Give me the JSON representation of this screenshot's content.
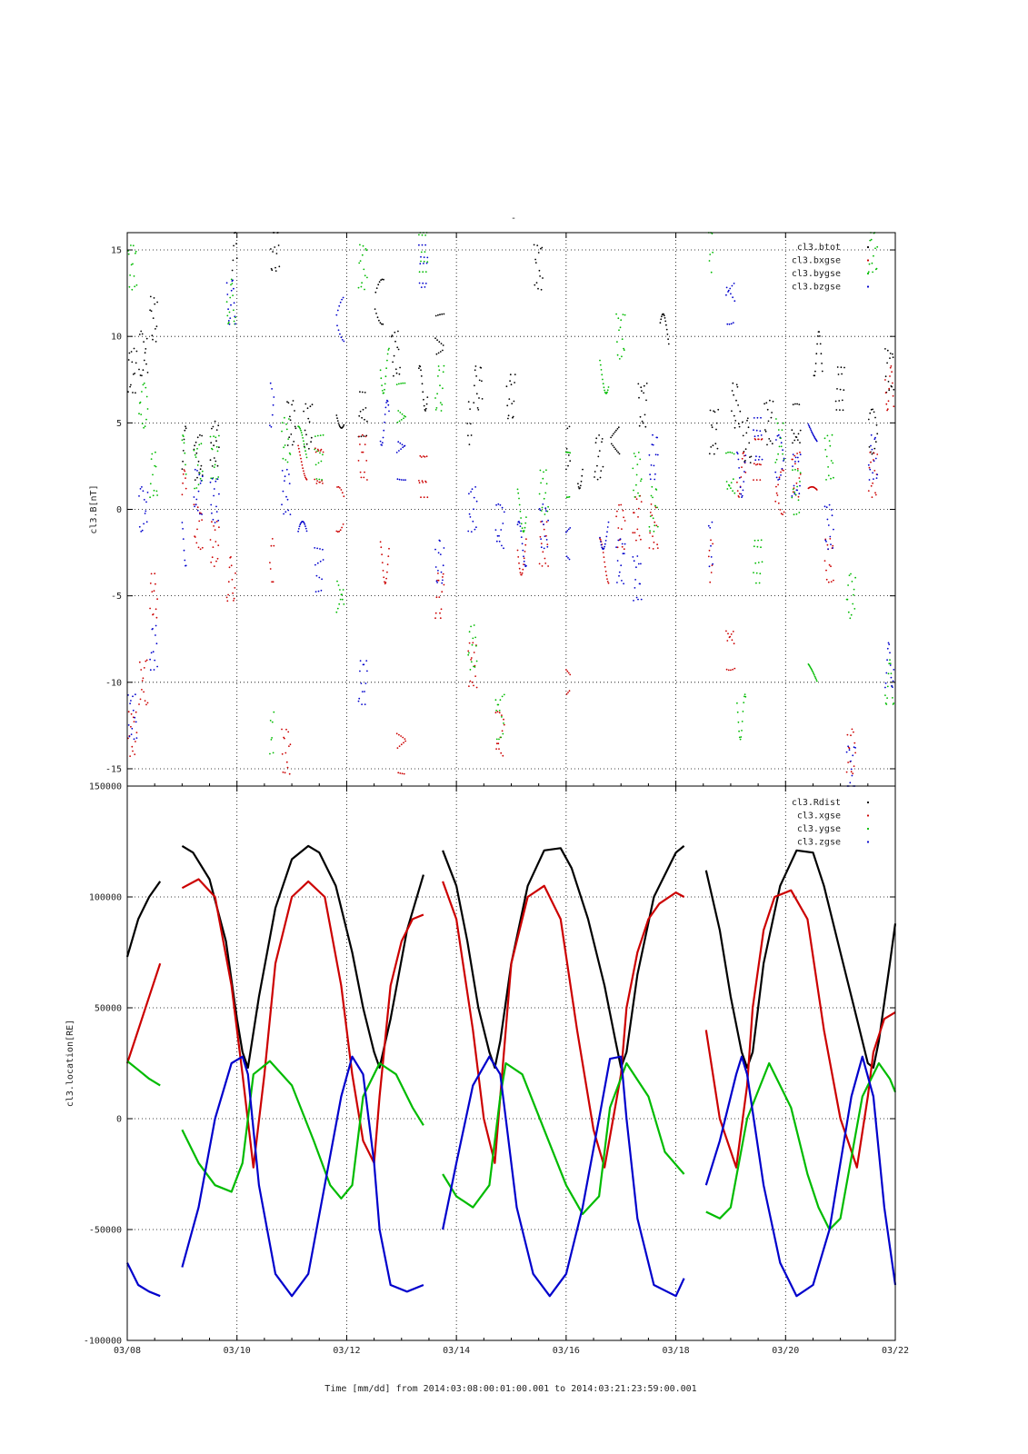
{
  "figure": {
    "title_mark": "-",
    "xlabel": "Time [mm/dd]  from 2014:03:08:00:01:00.001  to  2014:03:21:23:59:00.001",
    "x_tick_labels": [
      "03/08",
      "03/10",
      "03/12",
      "03/14",
      "03/16",
      "03/18",
      "03/20",
      "03/22"
    ]
  },
  "chart_data": [
    {
      "type": "scatter",
      "ylabel": "cl3.B[nT]",
      "ylim": [
        -16,
        16
      ],
      "xlim_days": [
        0,
        14
      ],
      "y_ticks": [
        -15,
        -10,
        -5,
        0,
        5,
        10,
        15
      ],
      "y_tick_labels": [
        "-15",
        "-10",
        "-5",
        "0",
        "5",
        "10",
        "15"
      ],
      "grid": true,
      "legend_position": "top-right",
      "data_gaps_days": [
        [
          0.55,
          1.0
        ],
        [
          2.0,
          2.6
        ],
        [
          3.95,
          4.2
        ],
        [
          6.0,
          6.2
        ],
        [
          6.5,
          6.7
        ],
        [
          7.8,
          8.0
        ],
        [
          8.3,
          8.5
        ],
        [
          10.1,
          10.6
        ]
      ],
      "series": [
        {
          "name": "cl3.btot",
          "color": "#000000",
          "x": [
            0.1,
            0.3,
            0.5,
            1.0,
            1.3,
            1.6,
            2.0,
            2.7,
            3.0,
            3.3,
            3.9,
            4.3,
            4.6,
            4.9,
            5.4,
            5.7,
            6.2,
            6.4,
            7.0,
            7.5,
            8.0,
            8.3,
            8.6,
            8.9,
            9.4,
            9.8,
            10.3,
            10.7,
            11.1,
            11.3,
            11.7,
            12.2,
            12.6,
            13.0,
            13.6,
            13.9
          ],
          "y": [
            8,
            9,
            11,
            3.5,
            3,
            3.8,
            15,
            15,
            5,
            4.8,
            6,
            5.5,
            12,
            9,
            7,
            10,
            5,
            7,
            6.5,
            14,
            3.5,
            2.5,
            3,
            4,
            6,
            10,
            4,
            4.5,
            6,
            4,
            5,
            4.8,
            9,
            7,
            4.5,
            8
          ]
        },
        {
          "name": "cl3.bxgse",
          "color": "#cc0000",
          "x": [
            0.1,
            0.3,
            0.5,
            1.0,
            1.3,
            1.6,
            1.9,
            2.1,
            2.6,
            2.9,
            3.2,
            3.5,
            3.9,
            4.3,
            4.7,
            5.0,
            5.4,
            5.7,
            6.1,
            6.3,
            6.8,
            7.2,
            7.6,
            8.0,
            8.4,
            8.7,
            9.0,
            9.3,
            9.6,
            10.3,
            10.6,
            11.0,
            11.2,
            11.5,
            11.9,
            12.2,
            12.5,
            12.8,
            13.2,
            13.6,
            13.9
          ],
          "y": [
            -13,
            -10,
            -5,
            1,
            -1,
            -2,
            -4,
            3,
            -3,
            -14,
            3,
            2.5,
            0,
            3,
            -3,
            -14,
            2,
            -5,
            -7,
            -9,
            -13,
            -2.5,
            -2,
            -10,
            -5,
            -3,
            -1,
            -0.5,
            -1,
            1,
            -3,
            -8,
            2,
            3,
            1,
            2,
            0,
            -3,
            -14,
            2,
            7
          ]
        },
        {
          "name": "cl3.bygse",
          "color": "#00bb00",
          "x": [
            0.1,
            0.3,
            0.5,
            1.0,
            1.3,
            1.6,
            1.9,
            2.1,
            2.6,
            2.9,
            3.2,
            3.5,
            3.9,
            4.3,
            4.7,
            5.0,
            5.4,
            5.7,
            6.1,
            6.3,
            6.8,
            7.2,
            7.6,
            8.0,
            8.4,
            8.7,
            9.0,
            9.3,
            9.6,
            10.3,
            10.6,
            11.0,
            11.2,
            11.5,
            11.9,
            12.2,
            12.5,
            12.8,
            13.2,
            13.6,
            13.9
          ],
          "y": [
            14,
            6,
            2,
            3,
            2.5,
            3,
            12,
            -8,
            -13,
            4,
            3.5,
            3,
            -5,
            14,
            8,
            6,
            15,
            7,
            2,
            -8,
            -12,
            0,
            1,
            2,
            14,
            8,
            10,
            2,
            0,
            -6,
            15,
            2,
            -12,
            -3,
            4,
            1,
            -10,
            3,
            -5,
            15,
            -10
          ]
        },
        {
          "name": "cl3.bzgse",
          "color": "#0000cc",
          "x": [
            0.1,
            0.3,
            0.5,
            1.0,
            1.3,
            1.6,
            1.9,
            2.1,
            2.6,
            2.9,
            3.2,
            3.5,
            3.9,
            4.3,
            4.7,
            5.0,
            5.4,
            5.7,
            6.1,
            6.3,
            6.8,
            7.2,
            7.6,
            8.0,
            8.4,
            8.7,
            9.0,
            9.3,
            9.6,
            10.3,
            10.6,
            11.0,
            11.2,
            11.5,
            11.9,
            12.2,
            12.5,
            12.8,
            13.2,
            13.6,
            13.9
          ],
          "y": [
            -12,
            0,
            -8,
            -2,
            1,
            0.5,
            12,
            -10,
            6,
            1,
            -2,
            -3.5,
            11,
            -10,
            5,
            3,
            14,
            -3,
            -12,
            0,
            -1,
            -2,
            -1,
            -2,
            -13,
            -1,
            -3,
            -4,
            3,
            1,
            -2,
            12,
            2,
            4,
            3,
            2,
            5,
            -1,
            -15,
            3,
            -9
          ]
        }
      ]
    },
    {
      "type": "line",
      "ylabel": "cl3.location[RE]",
      "ylim": [
        -100000,
        150000
      ],
      "xlim_days": [
        0,
        14
      ],
      "y_ticks": [
        -100000,
        -50000,
        0,
        50000,
        100000,
        150000
      ],
      "y_tick_labels": [
        "-100000",
        "-50000",
        "0",
        "50000",
        "100000",
        "150000"
      ],
      "grid": true,
      "legend_position": "top-right",
      "data_gaps_days": [
        [
          0.6,
          1.0
        ],
        [
          5.4,
          5.75
        ],
        [
          10.15,
          10.55
        ]
      ],
      "series": [
        {
          "name": "cl3.Rdist",
          "color": "#000000",
          "x": [
            0.0,
            0.2,
            0.4,
            0.6,
            1.0,
            1.2,
            1.5,
            1.8,
            2.0,
            2.1,
            2.2,
            2.4,
            2.7,
            3.0,
            3.3,
            3.5,
            3.8,
            4.1,
            4.3,
            4.5,
            4.6,
            4.8,
            5.1,
            5.4,
            5.75,
            6.0,
            6.2,
            6.4,
            6.6,
            6.7,
            6.8,
            7.0,
            7.3,
            7.6,
            7.9,
            8.1,
            8.4,
            8.7,
            8.9,
            9.0,
            9.1,
            9.3,
            9.6,
            10.0,
            10.15,
            10.55,
            10.8,
            11.0,
            11.2,
            11.3,
            11.4,
            11.6,
            11.9,
            12.2,
            12.5,
            12.7,
            13.0,
            13.3,
            13.5,
            13.6,
            13.7,
            13.9,
            14.0
          ],
          "y": [
            73000,
            90000,
            100000,
            107000,
            123000,
            120000,
            108000,
            80000,
            45000,
            30000,
            23000,
            55000,
            95000,
            117000,
            123000,
            120000,
            105000,
            75000,
            50000,
            30000,
            23000,
            45000,
            85000,
            110000,
            121000,
            105000,
            80000,
            50000,
            30000,
            23000,
            35000,
            70000,
            105000,
            121000,
            122000,
            113000,
            90000,
            60000,
            35000,
            23000,
            30000,
            65000,
            100000,
            120000,
            123000,
            112000,
            85000,
            55000,
            30000,
            23000,
            30000,
            70000,
            105000,
            121000,
            120000,
            105000,
            75000,
            45000,
            25000,
            23000,
            35000,
            70000,
            88000
          ]
        },
        {
          "name": "cl3.xgse",
          "color": "#cc0000",
          "x": [
            0.0,
            0.2,
            0.4,
            0.6,
            1.0,
            1.3,
            1.6,
            1.9,
            2.1,
            2.3,
            2.5,
            2.7,
            3.0,
            3.3,
            3.6,
            3.9,
            4.1,
            4.3,
            4.5,
            4.6,
            4.8,
            5.0,
            5.2,
            5.4,
            5.75,
            6.0,
            6.3,
            6.5,
            6.7,
            6.8,
            7.0,
            7.3,
            7.6,
            7.9,
            8.2,
            8.5,
            8.7,
            9.0,
            9.1,
            9.3,
            9.5,
            9.7,
            10.0,
            10.15,
            10.55,
            10.8,
            11.1,
            11.3,
            11.4,
            11.6,
            11.8,
            12.1,
            12.4,
            12.7,
            13.0,
            13.3,
            13.5,
            13.6,
            13.8,
            14.0
          ],
          "y": [
            25000,
            40000,
            55000,
            70000,
            104000,
            108000,
            100000,
            60000,
            20000,
            -22000,
            20000,
            70000,
            100000,
            107000,
            100000,
            60000,
            20000,
            -10000,
            -20000,
            10000,
            60000,
            80000,
            90000,
            92000,
            107000,
            90000,
            40000,
            0,
            -20000,
            10000,
            70000,
            100000,
            105000,
            90000,
            40000,
            -5000,
            -22000,
            20000,
            50000,
            75000,
            90000,
            97000,
            102000,
            100000,
            40000,
            0,
            -22000,
            15000,
            50000,
            85000,
            100000,
            103000,
            90000,
            40000,
            0,
            -22000,
            10000,
            30000,
            45000,
            48000
          ]
        },
        {
          "name": "cl3.ygse",
          "color": "#00bb00",
          "x": [
            0.0,
            0.2,
            0.4,
            0.6,
            1.0,
            1.3,
            1.6,
            1.9,
            2.1,
            2.3,
            2.6,
            3.0,
            3.4,
            3.7,
            3.9,
            4.1,
            4.3,
            4.6,
            4.9,
            5.2,
            5.4,
            5.75,
            6.0,
            6.3,
            6.6,
            6.8,
            6.9,
            7.2,
            7.6,
            8.0,
            8.3,
            8.6,
            8.8,
            9.1,
            9.5,
            9.8,
            10.15,
            10.55,
            10.8,
            11.0,
            11.3,
            11.7,
            12.1,
            12.4,
            12.6,
            12.8,
            13.0,
            13.4,
            13.7,
            13.9,
            14.0
          ],
          "y": [
            26000,
            22000,
            18000,
            15000,
            -5000,
            -20000,
            -30000,
            -33000,
            -20000,
            20000,
            26000,
            15000,
            -10000,
            -30000,
            -36000,
            -30000,
            10000,
            25000,
            20000,
            5000,
            -3000,
            -25000,
            -35000,
            -40000,
            -30000,
            10000,
            25000,
            20000,
            -5000,
            -30000,
            -43000,
            -35000,
            5000,
            25000,
            10000,
            -15000,
            -25000,
            -42000,
            -45000,
            -40000,
            0,
            25000,
            5000,
            -25000,
            -40000,
            -50000,
            -45000,
            10000,
            25000,
            18000,
            12000
          ]
        },
        {
          "name": "cl3.zgse",
          "color": "#0000cc",
          "x": [
            0.0,
            0.2,
            0.4,
            0.6,
            1.0,
            1.3,
            1.6,
            1.9,
            2.1,
            2.2,
            2.4,
            2.7,
            3.0,
            3.3,
            3.6,
            3.9,
            4.1,
            4.3,
            4.5,
            4.6,
            4.8,
            5.1,
            5.4,
            5.75,
            6.0,
            6.3,
            6.6,
            6.8,
            6.9,
            7.1,
            7.4,
            7.7,
            8.0,
            8.3,
            8.6,
            8.8,
            9.0,
            9.1,
            9.3,
            9.6,
            10.0,
            10.15,
            10.55,
            10.8,
            11.1,
            11.2,
            11.3,
            11.6,
            11.9,
            12.2,
            12.5,
            12.8,
            13.0,
            13.2,
            13.4,
            13.6,
            13.8,
            14.0
          ],
          "y": [
            -65000,
            -75000,
            -78000,
            -80000,
            -67000,
            -40000,
            0,
            25000,
            28000,
            20000,
            -30000,
            -70000,
            -80000,
            -70000,
            -30000,
            10000,
            28000,
            20000,
            -20000,
            -50000,
            -75000,
            -78000,
            -75000,
            -50000,
            -20000,
            15000,
            28000,
            20000,
            0,
            -40000,
            -70000,
            -80000,
            -70000,
            -40000,
            0,
            27000,
            28000,
            0,
            -45000,
            -75000,
            -80000,
            -72000,
            -30000,
            -10000,
            20000,
            28000,
            20000,
            -30000,
            -65000,
            -80000,
            -75000,
            -50000,
            -20000,
            10000,
            28000,
            10000,
            -40000,
            -75000
          ]
        }
      ]
    }
  ]
}
